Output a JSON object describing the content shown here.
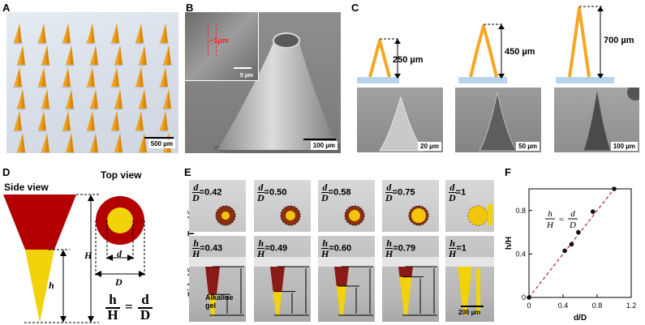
{
  "panels": {
    "A": {
      "label": "A",
      "scale": "500 µm"
    },
    "B": {
      "label": "B",
      "inset_scale": "5 µm",
      "inset_annot": "~1μm",
      "scale": "100 µm"
    },
    "C": {
      "label": "C",
      "heights": [
        "250 µm",
        "450 µm",
        "700 µm"
      ],
      "scales": [
        "20 µm",
        "50 µm",
        "100 µm"
      ]
    },
    "D": {
      "label": "D",
      "side_view": "Side view",
      "top_view": "Top view",
      "H": "H",
      "h": "h",
      "d": "d",
      "D_sym": "D",
      "eq_num_l": "h",
      "eq_den_l": "H",
      "eq_num_r": "d",
      "eq_den_r": "D"
    },
    "E": {
      "label": "E",
      "top_view": "Top View",
      "side_view": "Side View",
      "alkaline": "Alkaline\ngel",
      "scale": "200 µm",
      "dD": [
        "=0.42",
        "=0.50",
        "=0.58",
        "=0.75",
        "=1"
      ],
      "hH": [
        "=0.43",
        "=0.49",
        "=0.60",
        "=0.79",
        "=1"
      ]
    },
    "F": {
      "label": "F",
      "xlabel": "d/D",
      "ylabel": "h/H"
    }
  },
  "chart_data": {
    "type": "scatter",
    "xlabel": "d/D",
    "ylabel": "h/H",
    "xlim": [
      0,
      1.2
    ],
    "ylim": [
      0,
      1.0
    ],
    "xticks": [
      "0",
      "0.4",
      "0.8",
      "1.2"
    ],
    "yticks": [
      "0",
      "0.4",
      "0.8"
    ],
    "annotation": "h/H = d/D",
    "points": [
      {
        "x": 0,
        "y": 0
      },
      {
        "x": 0.42,
        "y": 0.43
      },
      {
        "x": 0.5,
        "y": 0.49
      },
      {
        "x": 0.58,
        "y": 0.6
      },
      {
        "x": 0.75,
        "y": 0.79
      },
      {
        "x": 1.0,
        "y": 1.0
      }
    ],
    "fit_line": {
      "style": "dashed",
      "color": "#b22222",
      "from": [
        0,
        0
      ],
      "to": [
        1,
        1
      ]
    },
    "point_color": "#111111",
    "grid": false
  },
  "colors": {
    "red": "#b30000",
    "yellow": "#f2d20a",
    "orange": "#f5a623",
    "base": "#b8d4ee"
  }
}
